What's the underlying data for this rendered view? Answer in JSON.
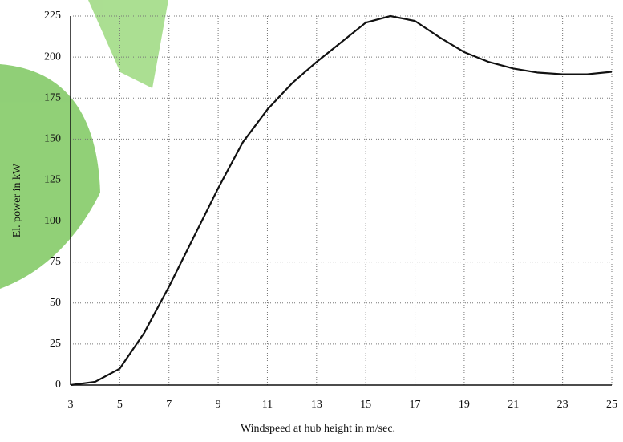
{
  "chart_data": {
    "type": "line",
    "x_label": "Windspeed  at hub height in m/sec.",
    "y_label": "El. power in kW",
    "x": [
      3,
      4,
      5,
      6,
      7,
      8,
      9,
      10,
      11,
      12,
      13,
      14,
      15,
      16,
      17,
      18,
      19,
      20,
      21,
      22,
      23,
      24,
      25
    ],
    "series": [
      {
        "color": "#111111",
        "values": [
          0,
          2,
          10,
          32,
          60,
          90,
          120,
          148,
          168,
          184,
          197,
          209,
          221,
          225,
          222,
          212,
          203,
          197,
          193,
          190.5,
          189.5,
          189.5,
          191
        ]
      }
    ],
    "xlim": [
      3,
      25
    ],
    "xticks": [
      3,
      5,
      7,
      9,
      11,
      13,
      15,
      17,
      19,
      21,
      23,
      25
    ],
    "ylim": [
      0,
      225
    ],
    "yticks": [
      0,
      25,
      50,
      75,
      100,
      125,
      150,
      175,
      200,
      225
    ],
    "grid": true
  }
}
